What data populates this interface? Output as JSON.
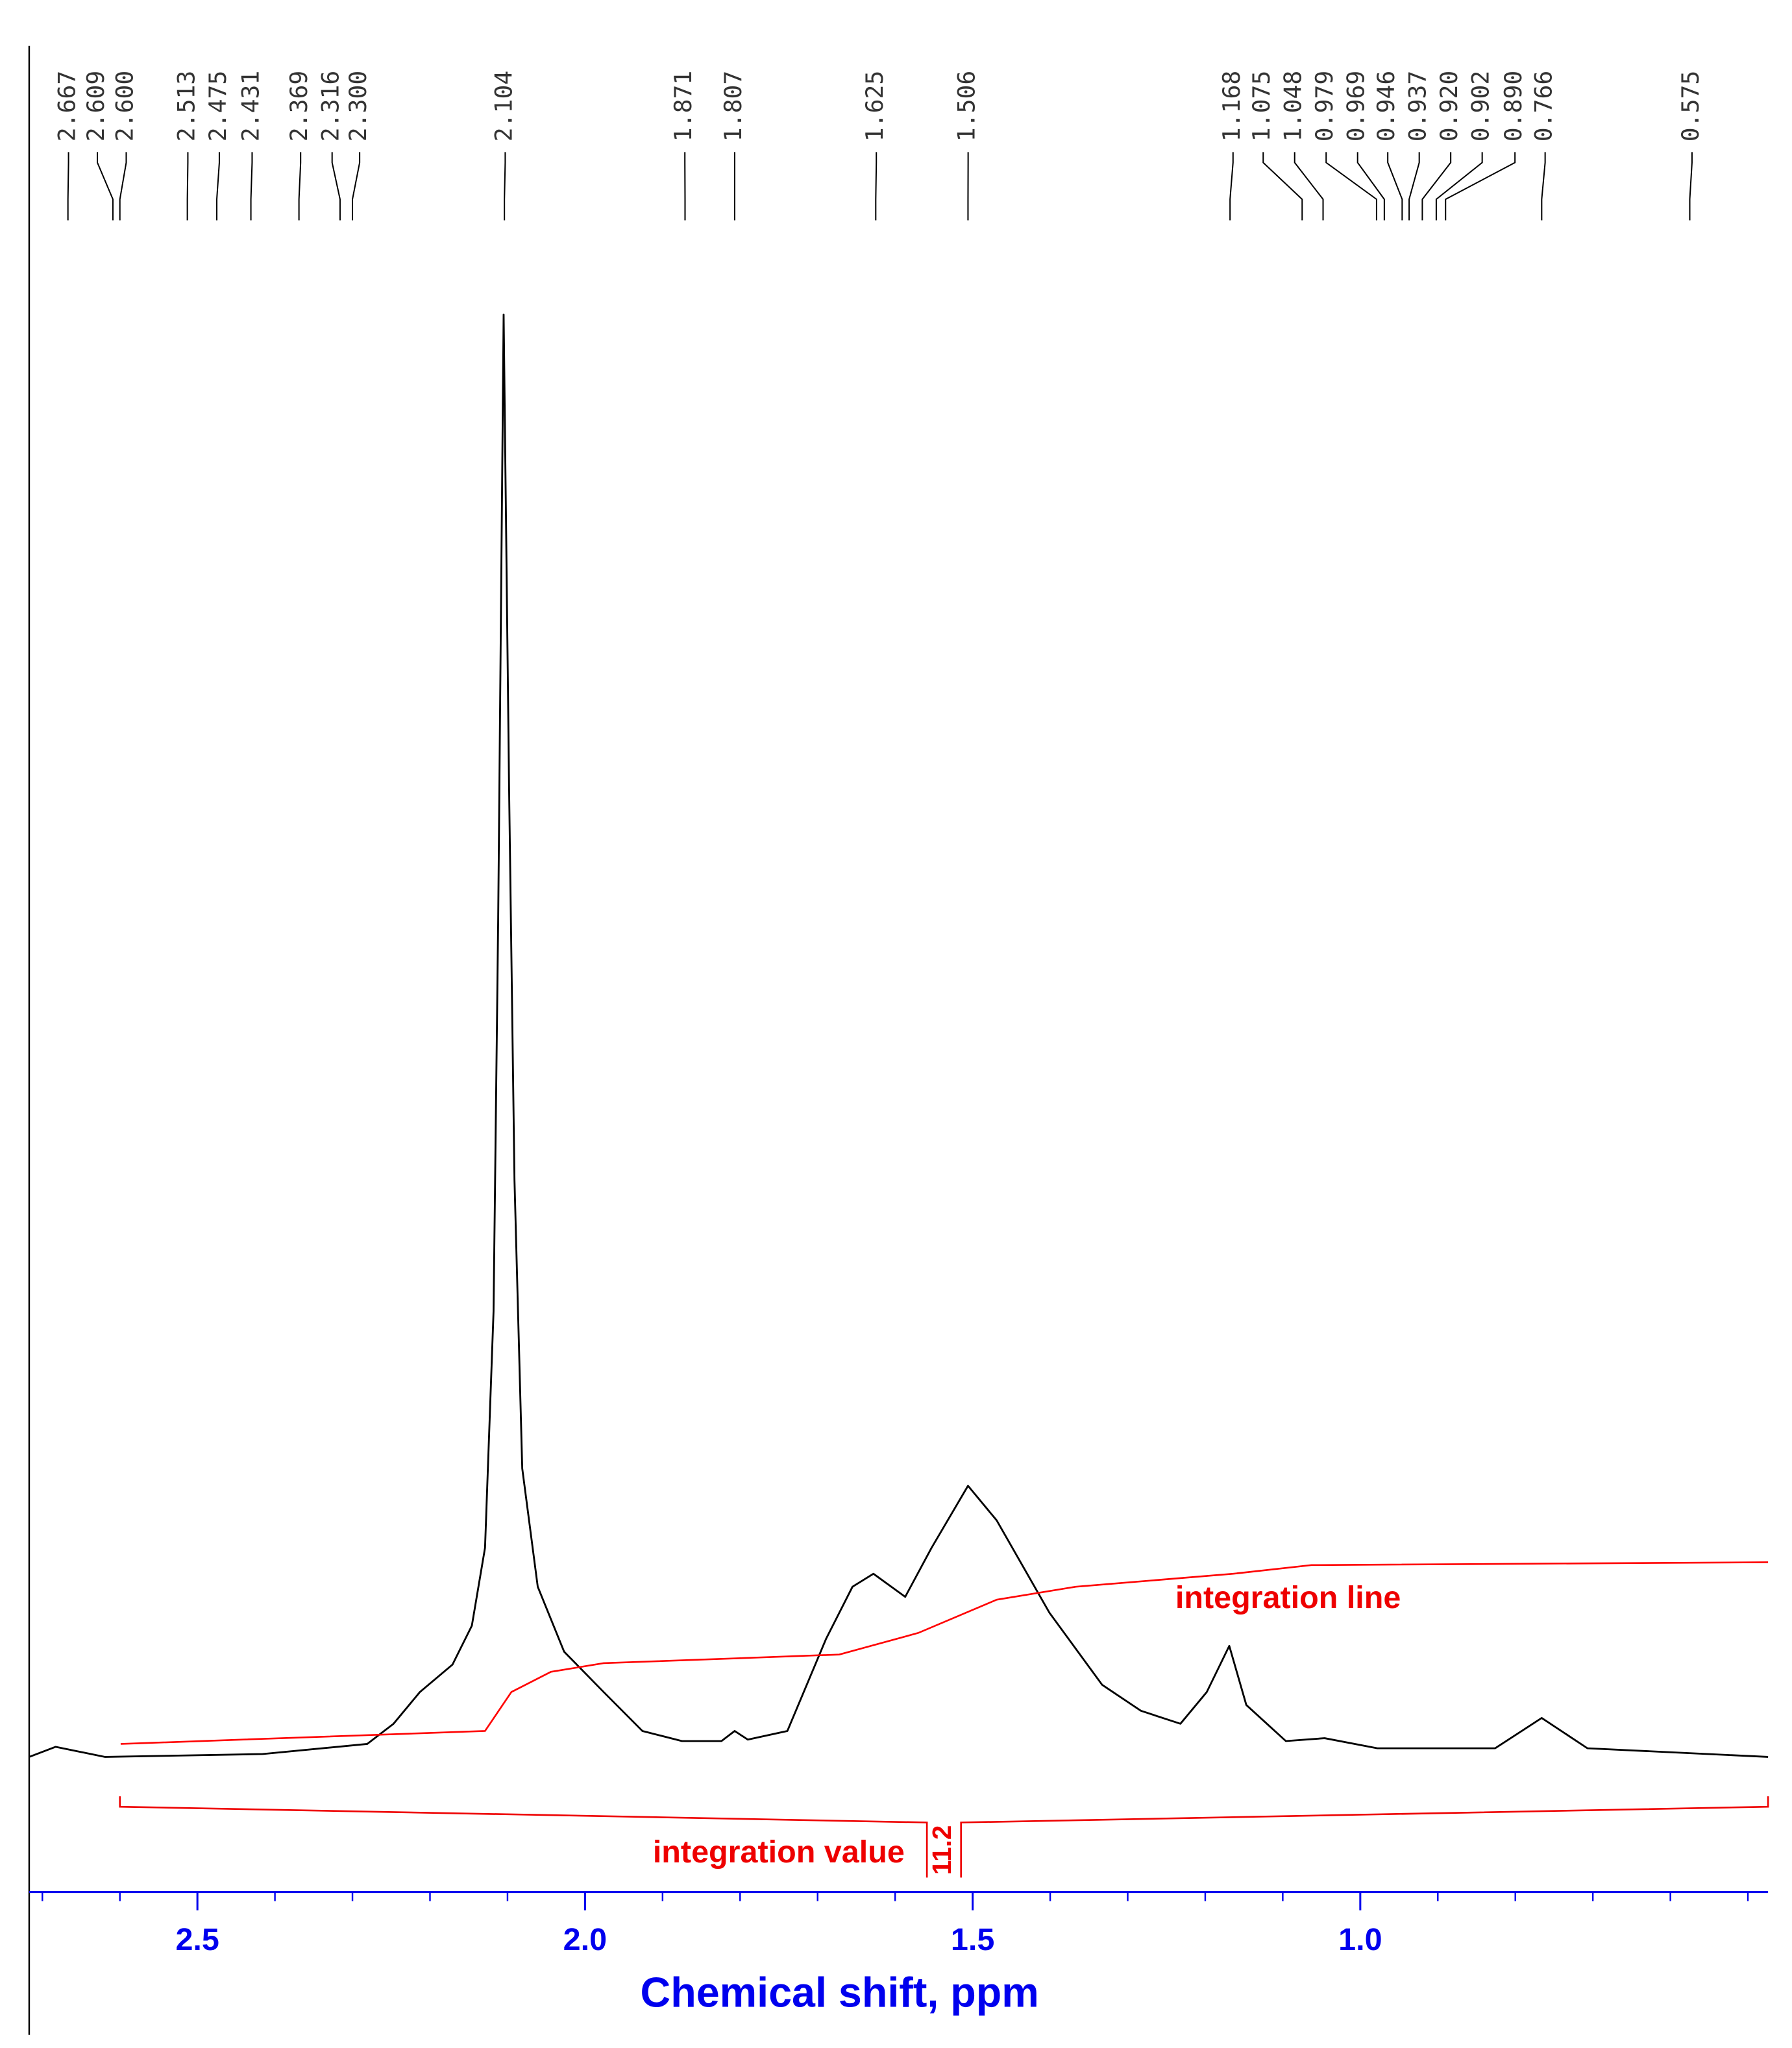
{
  "chart_data": {
    "type": "nmr",
    "x_label": "Chemical shift, ppm",
    "xlim": [
      2.717,
      0.474
    ],
    "ylim": [
      0,
      100
    ],
    "xticks": [
      {
        "value": 2.5,
        "label": "2.5"
      },
      {
        "value": 2.0,
        "label": "2.0"
      },
      {
        "value": 1.5,
        "label": "1.5"
      },
      {
        "value": 1.0,
        "label": "1.0"
      }
    ],
    "xticks_minor": [
      2.7,
      2.6,
      2.4,
      2.3,
      2.2,
      2.1,
      1.9,
      1.8,
      1.7,
      1.6,
      1.4,
      1.3,
      1.2,
      1.1,
      0.9,
      0.8,
      0.7,
      0.6,
      0.5
    ],
    "spectrum": {
      "color": "#000000",
      "x": [
        2.717,
        2.683,
        2.619,
        2.416,
        2.281,
        2.247,
        2.213,
        2.171,
        2.146,
        2.129,
        2.118,
        2.112,
        2.105,
        2.098,
        2.091,
        2.081,
        2.061,
        2.027,
        1.976,
        1.926,
        1.875,
        1.824,
        1.807,
        1.79,
        1.739,
        1.689,
        1.655,
        1.628,
        1.587,
        1.553,
        1.506,
        1.469,
        1.401,
        1.333,
        1.283,
        1.232,
        1.198,
        1.169,
        1.147,
        1.096,
        1.046,
        0.978,
        0.826,
        0.766,
        0.707,
        0.474
      ],
      "values": [
        0,
        0.7,
        0,
        0.2,
        0.9,
        2.3,
        4.5,
        6.4,
        9.1,
        14.5,
        30.9,
        58.2,
        100,
        67.3,
        40,
        20,
        11.8,
        7.3,
        4.5,
        1.8,
        1.1,
        1.1,
        1.8,
        1.2,
        1.8,
        8.2,
        11.8,
        12.7,
        11.1,
        14.5,
        18.8,
        16.4,
        10,
        5,
        3.2,
        2.3,
        4.5,
        7.7,
        3.6,
        1.1,
        1.3,
        0.6,
        0.6,
        2.7,
        0.6,
        0
      ]
    },
    "integration_curve": {
      "name": "integration line",
      "color": "#ff0000",
      "x": [
        2.599,
        2.129,
        2.095,
        2.044,
        1.976,
        1.672,
        1.57,
        1.469,
        1.367,
        1.164,
        1.063,
        0.474
      ],
      "values": [
        0.9,
        1.8,
        4.5,
        5.9,
        6.5,
        7.1,
        8.6,
        10.9,
        11.8,
        12.7,
        13.3,
        13.5
      ]
    },
    "integrals_label": "integration value",
    "integrals": [
      {
        "from": 2.6,
        "to": 0.474,
        "value": 11.2
      }
    ],
    "peaks": [
      {
        "value": 2.667,
        "label": "2.667"
      },
      {
        "value": 2.609,
        "label": "2.609"
      },
      {
        "value": 2.6,
        "label": "2.600"
      },
      {
        "value": 2.513,
        "label": "2.513"
      },
      {
        "value": 2.475,
        "label": "2.475"
      },
      {
        "value": 2.431,
        "label": "2.431"
      },
      {
        "value": 2.369,
        "label": "2.369"
      },
      {
        "value": 2.316,
        "label": "2.316"
      },
      {
        "value": 2.3,
        "label": "2.300"
      },
      {
        "value": 2.104,
        "label": "2.104"
      },
      {
        "value": 1.871,
        "label": "1.871"
      },
      {
        "value": 1.807,
        "label": "1.807"
      },
      {
        "value": 1.625,
        "label": "1.625"
      },
      {
        "value": 1.506,
        "label": "1.506"
      },
      {
        "value": 1.168,
        "label": "1.168"
      },
      {
        "value": 1.075,
        "label": "1.075"
      },
      {
        "value": 1.048,
        "label": "1.048"
      },
      {
        "value": 0.979,
        "label": "0.979"
      },
      {
        "value": 0.969,
        "label": "0.969"
      },
      {
        "value": 0.946,
        "label": "0.946"
      },
      {
        "value": 0.937,
        "label": "0.937"
      },
      {
        "value": 0.92,
        "label": "0.920"
      },
      {
        "value": 0.902,
        "label": "0.902"
      },
      {
        "value": 0.89,
        "label": "0.890"
      },
      {
        "value": 0.766,
        "label": "0.766"
      },
      {
        "value": 0.575,
        "label": "0.575"
      }
    ]
  }
}
